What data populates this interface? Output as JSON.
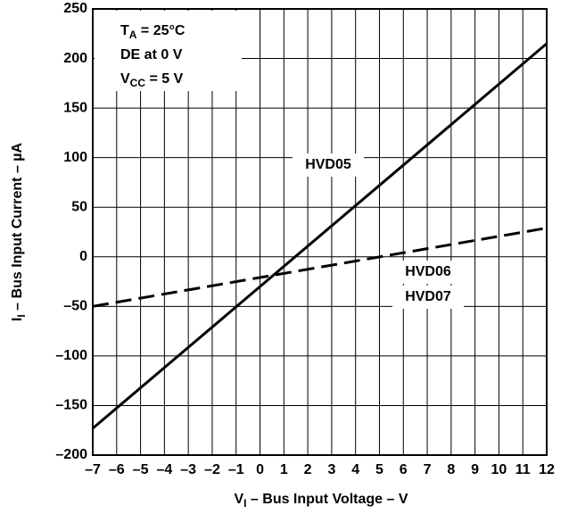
{
  "chart_data": {
    "type": "line",
    "annotations": [
      [
        "T",
        "A",
        " = 25°C"
      ],
      [
        "DE at 0 V"
      ],
      [
        "V",
        "CC",
        " = 5 V"
      ]
    ],
    "x_label": [
      "V",
      "I",
      " – Bus Input Voltage – V"
    ],
    "y_label": [
      "I",
      "I",
      " – Bus Input Current – µA"
    ],
    "series": [
      {
        "names": [
          "HVD05"
        ],
        "color": "#000000",
        "dashed": false,
        "x": [
          -7,
          12
        ],
        "values": [
          -173,
          215
        ]
      },
      {
        "names": [
          "HVD06",
          "HVD07"
        ],
        "color": "#000000",
        "dashed": true,
        "x": [
          -7,
          12
        ],
        "values": [
          -50,
          29
        ]
      }
    ],
    "xlim": [
      -7,
      12
    ],
    "xticks": [
      {
        "value": -7,
        "label": "–7"
      },
      {
        "value": -6,
        "label": "–6"
      },
      {
        "value": -5,
        "label": "–5"
      },
      {
        "value": -4,
        "label": "–4"
      },
      {
        "value": -3,
        "label": "–3"
      },
      {
        "value": -2,
        "label": "–2"
      },
      {
        "value": -1,
        "label": "–1"
      },
      0,
      1,
      2,
      3,
      4,
      5,
      6,
      7,
      8,
      9,
      10,
      11,
      12
    ],
    "ylim": [
      -200,
      250
    ],
    "yticks": [
      {
        "value": -200,
        "label": "–200"
      },
      {
        "value": -150,
        "label": "–150"
      },
      {
        "value": -100,
        "label": "–100"
      },
      {
        "value": -50,
        "label": "–50"
      },
      0,
      50,
      100,
      150,
      200,
      250
    ],
    "grid": true
  }
}
